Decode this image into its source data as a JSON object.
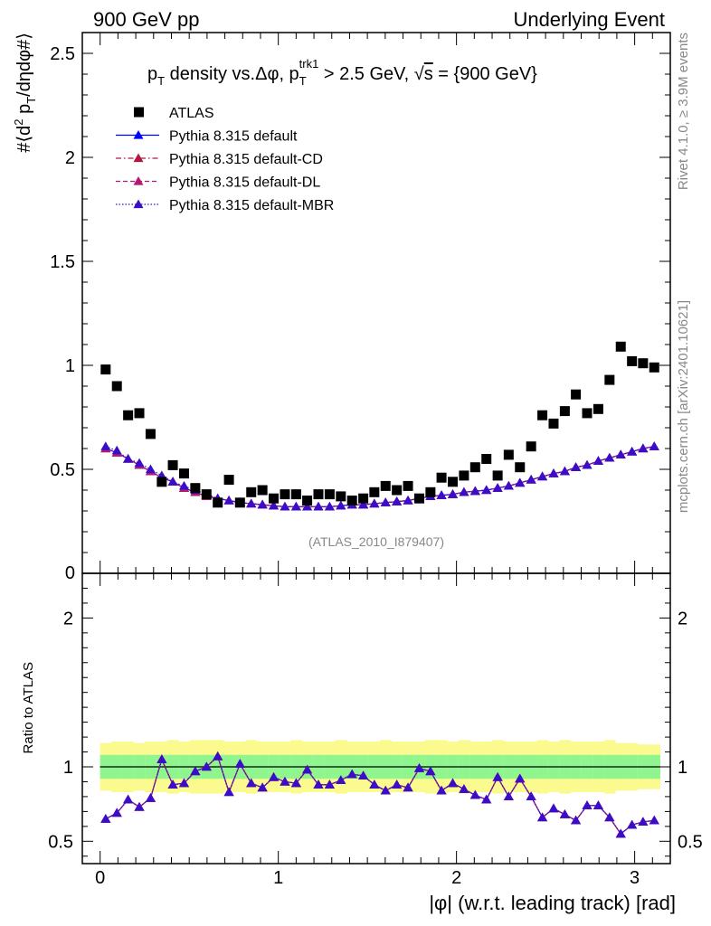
{
  "header": {
    "left": "900 GeV pp",
    "right": "Underlying Event"
  },
  "side_labels": {
    "rivet": "Rivet 4.1.0, ≥ 3.9M events",
    "mcplots": "mcplots.cern.ch [arXiv:2401.10621]"
  },
  "watermark": "(ATLAS_2010_I879407)",
  "chart_data": [
    {
      "type": "scatter",
      "panel": "main",
      "title": "p_T density vs. Δφ, p_T^trk1 > 2.5 GeV, √s = {900 GeV}",
      "title_parts": {
        "a": "p",
        "a_sub": "T",
        "b": " density vs.Δφ, p",
        "b_sub": "T",
        "b_sup": "trk1",
        "c": " > 2.5 GeV, ",
        "d": "√",
        "e": "s",
        "f": " = {900 GeV}"
      },
      "ylabel_parts": {
        "a": "#⟨d",
        "a_sup": "2",
        "b": " p",
        "b_sub": "T",
        "c": "/dηdφ#⟩"
      },
      "xlim": [
        -0.1,
        3.2
      ],
      "ylim": [
        0,
        2.6
      ],
      "yticks": [
        0.5,
        1,
        1.5,
        2,
        2.5
      ],
      "ytick_labels": [
        "0.5",
        "1",
        "1.5",
        "2",
        "2.5"
      ],
      "y_zero_label": "0",
      "legend": {
        "placement": "top-left",
        "entries": [
          {
            "name": "ATLAS",
            "color": "#000000",
            "marker": "square",
            "line": "none"
          },
          {
            "name": "Pythia 8.315 default",
            "color": "#0000ff",
            "marker": "triangle",
            "line": "solid"
          },
          {
            "name": "Pythia 8.315 default-CD",
            "color": "#b2183f",
            "marker": "triangle",
            "line": "dashdot"
          },
          {
            "name": "Pythia 8.315 default-DL",
            "color": "#b41970",
            "marker": "triangle",
            "line": "dashed"
          },
          {
            "name": "Pythia 8.315 default-MBR",
            "color": "#3a0ec8",
            "marker": "triangle",
            "line": "dotted"
          }
        ]
      },
      "x": [
        0.031,
        0.094,
        0.157,
        0.22,
        0.283,
        0.346,
        0.408,
        0.471,
        0.534,
        0.597,
        0.66,
        0.723,
        0.785,
        0.848,
        0.911,
        0.974,
        1.037,
        1.1,
        1.162,
        1.225,
        1.288,
        1.351,
        1.414,
        1.477,
        1.539,
        1.602,
        1.665,
        1.728,
        1.791,
        1.854,
        1.916,
        1.979,
        2.042,
        2.105,
        2.168,
        2.231,
        2.293,
        2.356,
        2.419,
        2.482,
        2.545,
        2.608,
        2.67,
        2.733,
        2.796,
        2.859,
        2.922,
        2.985,
        3.047,
        3.11
      ],
      "series": [
        {
          "name": "ATLAS",
          "values": [
            0.98,
            0.9,
            0.76,
            0.77,
            0.67,
            0.44,
            0.52,
            0.48,
            0.41,
            0.38,
            0.34,
            0.45,
            0.34,
            0.39,
            0.4,
            0.36,
            0.38,
            0.38,
            0.35,
            0.38,
            0.38,
            0.37,
            0.35,
            0.36,
            0.39,
            0.42,
            0.4,
            0.42,
            0.36,
            0.39,
            0.46,
            0.44,
            0.47,
            0.51,
            0.55,
            0.47,
            0.57,
            0.51,
            0.61,
            0.76,
            0.72,
            0.78,
            0.86,
            0.77,
            0.79,
            0.93,
            1.09,
            1.02,
            1.01,
            0.99
          ]
        },
        {
          "name": "Pythia 8.315 default",
          "values": [
            0.6,
            0.58,
            0.55,
            0.52,
            0.49,
            0.46,
            0.44,
            0.41,
            0.39,
            0.37,
            0.36,
            0.35,
            0.34,
            0.335,
            0.33,
            0.325,
            0.32,
            0.32,
            0.32,
            0.32,
            0.32,
            0.325,
            0.33,
            0.33,
            0.335,
            0.34,
            0.345,
            0.35,
            0.36,
            0.37,
            0.375,
            0.38,
            0.39,
            0.395,
            0.4,
            0.41,
            0.42,
            0.435,
            0.45,
            0.465,
            0.48,
            0.49,
            0.51,
            0.52,
            0.54,
            0.555,
            0.57,
            0.585,
            0.6,
            0.61
          ]
        },
        {
          "name": "Pythia 8.315 default-CD",
          "values": [
            0.6,
            0.58,
            0.55,
            0.52,
            0.49,
            0.46,
            0.44,
            0.41,
            0.39,
            0.37,
            0.36,
            0.35,
            0.34,
            0.335,
            0.33,
            0.325,
            0.32,
            0.32,
            0.32,
            0.32,
            0.32,
            0.325,
            0.33,
            0.33,
            0.335,
            0.34,
            0.345,
            0.35,
            0.36,
            0.37,
            0.375,
            0.38,
            0.39,
            0.395,
            0.4,
            0.41,
            0.42,
            0.435,
            0.45,
            0.465,
            0.48,
            0.49,
            0.51,
            0.52,
            0.54,
            0.555,
            0.57,
            0.585,
            0.6,
            0.61
          ]
        },
        {
          "name": "Pythia 8.315 default-DL",
          "values": [
            0.6,
            0.58,
            0.55,
            0.52,
            0.49,
            0.46,
            0.44,
            0.41,
            0.39,
            0.37,
            0.36,
            0.35,
            0.34,
            0.335,
            0.33,
            0.325,
            0.32,
            0.32,
            0.32,
            0.32,
            0.32,
            0.325,
            0.33,
            0.33,
            0.335,
            0.34,
            0.345,
            0.35,
            0.36,
            0.37,
            0.375,
            0.38,
            0.39,
            0.395,
            0.4,
            0.41,
            0.42,
            0.435,
            0.45,
            0.465,
            0.48,
            0.49,
            0.51,
            0.52,
            0.54,
            0.555,
            0.57,
            0.585,
            0.6,
            0.61
          ]
        },
        {
          "name": "Pythia 8.315 default-MBR",
          "values": [
            0.61,
            0.59,
            0.55,
            0.53,
            0.5,
            0.47,
            0.44,
            0.42,
            0.4,
            0.38,
            0.36,
            0.35,
            0.34,
            0.335,
            0.33,
            0.325,
            0.32,
            0.32,
            0.32,
            0.32,
            0.32,
            0.325,
            0.33,
            0.33,
            0.335,
            0.34,
            0.345,
            0.35,
            0.36,
            0.37,
            0.375,
            0.38,
            0.39,
            0.395,
            0.4,
            0.41,
            0.42,
            0.435,
            0.45,
            0.465,
            0.48,
            0.49,
            0.51,
            0.52,
            0.54,
            0.555,
            0.57,
            0.585,
            0.6,
            0.61
          ]
        }
      ]
    },
    {
      "type": "line",
      "panel": "ratio",
      "ylabel": "Ratio to ATLAS",
      "xlabel": "|φ| (w.r.t. leading track) [rad]",
      "xlim": [
        -0.1,
        3.2
      ],
      "ylim": [
        0.35,
        2.3
      ],
      "xticks": [
        0,
        1,
        2,
        3
      ],
      "xtick_labels": [
        "0",
        "1",
        "2",
        "3"
      ],
      "yticks": [
        0.5,
        1,
        2
      ],
      "ytick_labels": [
        "0.5",
        "1",
        "2"
      ],
      "reference_line": 1,
      "band_inner_halfwidth": [
        0.08,
        0.08,
        0.08,
        0.08,
        0.08,
        0.08,
        0.08,
        0.08,
        0.08,
        0.08,
        0.08,
        0.08,
        0.08,
        0.08,
        0.08,
        0.08,
        0.08,
        0.08,
        0.08,
        0.08,
        0.08,
        0.08,
        0.08,
        0.08,
        0.08,
        0.08,
        0.08,
        0.08,
        0.08,
        0.08,
        0.08,
        0.08,
        0.08,
        0.08,
        0.08,
        0.08,
        0.08,
        0.08,
        0.08,
        0.08,
        0.08,
        0.08,
        0.08,
        0.08,
        0.08,
        0.08,
        0.08,
        0.08,
        0.08,
        0.08
      ],
      "band_outer_halfwidth": [
        0.16,
        0.17,
        0.17,
        0.16,
        0.17,
        0.17,
        0.18,
        0.17,
        0.18,
        0.18,
        0.18,
        0.17,
        0.17,
        0.18,
        0.17,
        0.17,
        0.17,
        0.18,
        0.17,
        0.17,
        0.17,
        0.18,
        0.17,
        0.17,
        0.17,
        0.18,
        0.17,
        0.17,
        0.17,
        0.18,
        0.18,
        0.17,
        0.18,
        0.17,
        0.17,
        0.18,
        0.17,
        0.17,
        0.17,
        0.18,
        0.17,
        0.18,
        0.17,
        0.17,
        0.17,
        0.18,
        0.16,
        0.16,
        0.15,
        0.15
      ],
      "band_colors": {
        "inner": "#8ff58f",
        "outer": "#fbfa8e"
      },
      "series": [
        {
          "name": "Pythia 8.315 default",
          "values": [
            0.65,
            0.69,
            0.78,
            0.73,
            0.79,
            1.05,
            0.88,
            0.89,
            0.97,
            1.0,
            1.07,
            0.83,
            1.02,
            0.89,
            0.86,
            0.93,
            0.9,
            0.89,
            0.98,
            0.88,
            0.88,
            0.91,
            0.95,
            0.94,
            0.88,
            0.84,
            0.88,
            0.86,
            0.99,
            0.97,
            0.84,
            0.89,
            0.85,
            0.81,
            0.78,
            0.93,
            0.8,
            0.92,
            0.8,
            0.66,
            0.72,
            0.68,
            0.64,
            0.74,
            0.74,
            0.66,
            0.55,
            0.61,
            0.63,
            0.64
          ]
        },
        {
          "name": "Pythia 8.315 default-CD",
          "values": [
            0.65,
            0.69,
            0.78,
            0.73,
            0.79,
            1.05,
            0.88,
            0.89,
            0.97,
            1.0,
            1.07,
            0.83,
            1.02,
            0.89,
            0.86,
            0.93,
            0.9,
            0.89,
            0.98,
            0.88,
            0.88,
            0.91,
            0.95,
            0.94,
            0.88,
            0.84,
            0.88,
            0.86,
            0.99,
            0.97,
            0.84,
            0.89,
            0.85,
            0.81,
            0.78,
            0.93,
            0.8,
            0.92,
            0.8,
            0.66,
            0.72,
            0.68,
            0.64,
            0.74,
            0.74,
            0.66,
            0.55,
            0.61,
            0.63,
            0.64
          ]
        },
        {
          "name": "Pythia 8.315 default-DL",
          "values": [
            0.65,
            0.69,
            0.78,
            0.73,
            0.79,
            1.05,
            0.88,
            0.89,
            0.97,
            1.0,
            1.07,
            0.83,
            1.02,
            0.89,
            0.86,
            0.93,
            0.9,
            0.89,
            0.98,
            0.88,
            0.88,
            0.91,
            0.95,
            0.94,
            0.88,
            0.84,
            0.88,
            0.86,
            0.99,
            0.97,
            0.84,
            0.89,
            0.85,
            0.81,
            0.78,
            0.93,
            0.8,
            0.92,
            0.8,
            0.66,
            0.72,
            0.68,
            0.64,
            0.74,
            0.74,
            0.66,
            0.55,
            0.61,
            0.63,
            0.64
          ]
        },
        {
          "name": "Pythia 8.315 default-MBR",
          "values": [
            0.65,
            0.69,
            0.78,
            0.73,
            0.79,
            1.05,
            0.88,
            0.89,
            0.97,
            1.0,
            1.07,
            0.83,
            1.02,
            0.89,
            0.86,
            0.93,
            0.9,
            0.89,
            0.98,
            0.88,
            0.88,
            0.91,
            0.95,
            0.94,
            0.88,
            0.84,
            0.88,
            0.86,
            0.99,
            0.97,
            0.84,
            0.89,
            0.85,
            0.81,
            0.78,
            0.93,
            0.8,
            0.92,
            0.8,
            0.66,
            0.72,
            0.68,
            0.64,
            0.74,
            0.74,
            0.66,
            0.55,
            0.61,
            0.63,
            0.64
          ]
        }
      ]
    }
  ]
}
